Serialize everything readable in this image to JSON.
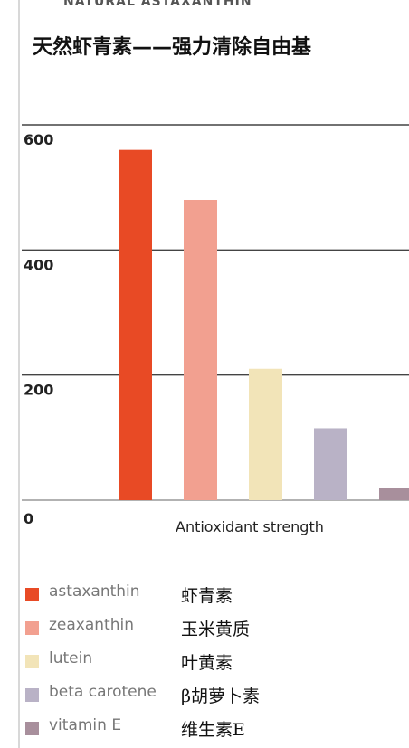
{
  "header": {
    "cut_title": "NATURAL ASTAXANTHIN",
    "title": "天然虾青素——强力清除自由基"
  },
  "chart_data": {
    "type": "bar",
    "categories": [
      "astaxanthin",
      "zeaxanthin",
      "lutein",
      "beta carotene",
      "vitamin E"
    ],
    "values": [
      560,
      480,
      210,
      115,
      20
    ],
    "colors": [
      "#e84a25",
      "#f2a090",
      "#f2e4b8",
      "#b9b2c6",
      "#a88f9c"
    ],
    "ylim": [
      0,
      600
    ],
    "yticks": [
      0,
      200,
      400,
      600
    ],
    "ytick_labels": [
      "0",
      "200",
      "400",
      "600"
    ],
    "xlabel": "Antioxidant strength",
    "ylabel": "",
    "grid": true,
    "legend": {
      "placement": "bottom",
      "entries": [
        {
          "en": "astaxanthin",
          "zh": "虾青素"
        },
        {
          "en": "zeaxanthin",
          "zh": "玉米黄质"
        },
        {
          "en": "lutein",
          "zh": "叶黄素"
        },
        {
          "en": "beta carotene",
          "zh": "β胡萝卜素"
        },
        {
          "en": "vitamin E",
          "zh": "维生素E"
        }
      ]
    }
  }
}
